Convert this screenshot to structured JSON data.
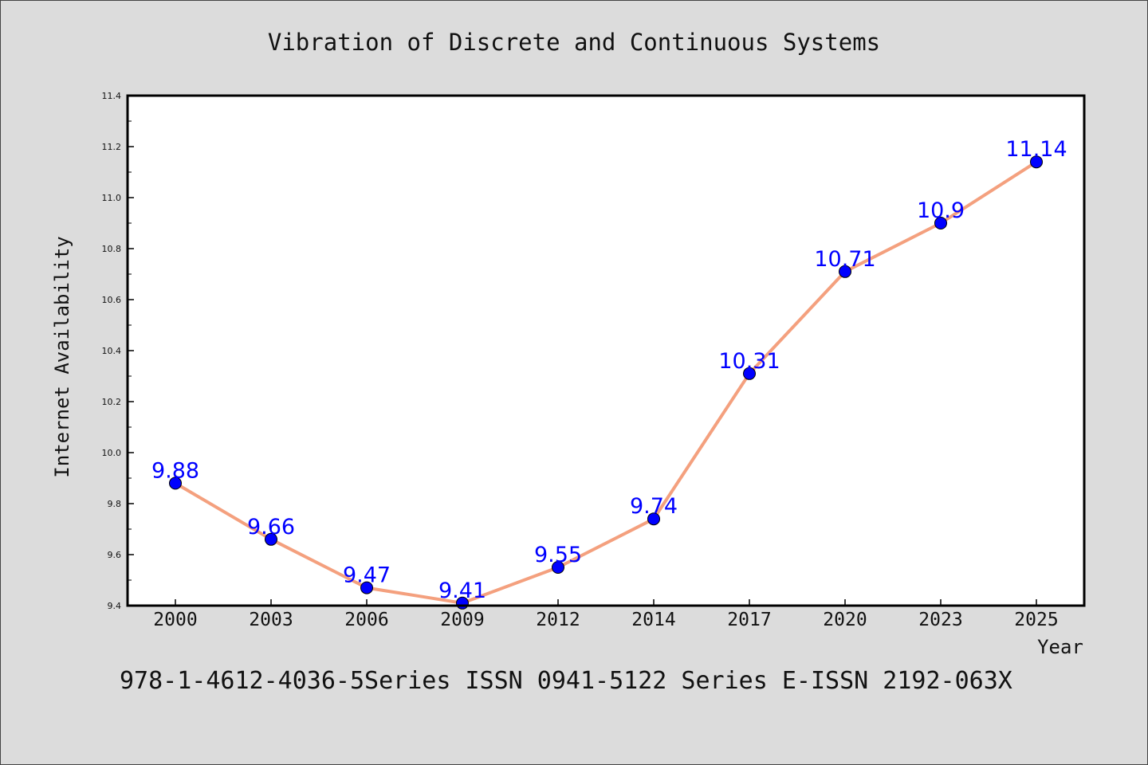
{
  "chart_data": {
    "type": "line",
    "title": "Vibration of Discrete and Continuous Systems",
    "xlabel": "Year",
    "ylabel": "Internet Availability",
    "categories": [
      "2000",
      "2003",
      "2006",
      "2009",
      "2012",
      "2014",
      "2017",
      "2020",
      "2023",
      "2025"
    ],
    "series": [
      {
        "values": [
          9.88,
          9.66,
          9.47,
          9.41,
          9.55,
          9.74,
          10.31,
          10.71,
          10.9,
          11.14
        ],
        "labels": [
          "9.88",
          "9.66",
          "9.47",
          "9.41",
          "9.55",
          "9.74",
          "10.31",
          "10.71",
          "10.9",
          "11.14"
        ]
      }
    ],
    "ylim": [
      9.4,
      11.4
    ],
    "yticks": [
      "9.4",
      "9.6",
      "9.8",
      "10.0",
      "10.2",
      "10.4",
      "10.6",
      "10.8",
      "11.0",
      "11.2",
      "11.4"
    ],
    "grid": false,
    "legend": "none",
    "line_color": "#f4a07e",
    "marker_color": "#0000ff",
    "label_color": "#0000ff",
    "footer": "978-1-4612-4036-5Series ISSN 0941-5122 Series E-ISSN 2192-063X"
  }
}
